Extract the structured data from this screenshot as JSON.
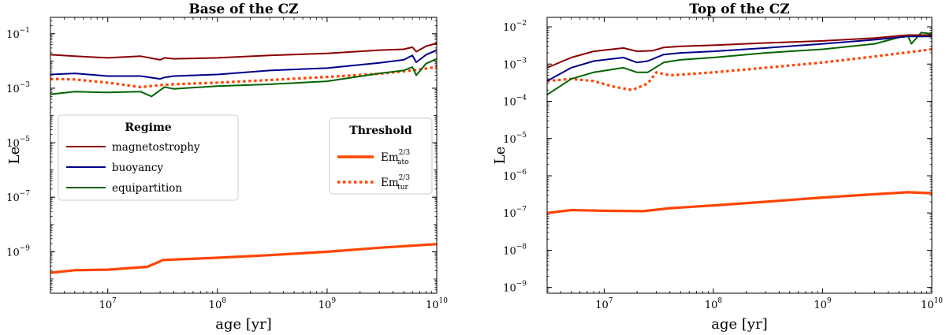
{
  "chart_data": [
    {
      "type": "line",
      "title": "Base of the CZ",
      "xlabel": "age [yr]",
      "ylabel": "Le",
      "xscale": "log",
      "yscale": "log",
      "xlim": [
        3000000,
        10000000000
      ],
      "ylim": [
        3e-11,
        0.4
      ],
      "x_ticks": [
        {
          "base": "10",
          "exp": "7",
          "value": 10000000
        },
        {
          "base": "10",
          "exp": "8",
          "value": 100000000
        },
        {
          "base": "10",
          "exp": "9",
          "value": 1000000000
        },
        {
          "base": "10",
          "exp": "10",
          "value": 10000000000
        }
      ],
      "y_ticks": [
        {
          "base": "10",
          "exp": "−9",
          "value": 1e-09
        },
        {
          "base": "10",
          "exp": "−7",
          "value": 1e-07
        },
        {
          "base": "10",
          "exp": "−5",
          "value": 1e-05
        },
        {
          "base": "10",
          "exp": "−3",
          "value": 0.001
        },
        {
          "base": "10",
          "exp": "−1",
          "value": 0.1
        }
      ],
      "series": [
        {
          "name": "magnetostrophy",
          "color": "#8b0000",
          "style": "solid",
          "x": [
            3000000.0,
            5000000.0,
            10000000.0,
            20000000.0,
            30000000.0,
            33000000.0,
            40000000.0,
            100000000.0,
            300000000.0,
            1000000000.0,
            3000000000.0,
            5000000000.0,
            6000000000.0,
            6500000000.0,
            8000000000.0,
            10000000000.0
          ],
          "y": [
            0.017,
            0.015,
            0.013,
            0.015,
            0.011,
            0.013,
            0.012,
            0.013,
            0.016,
            0.019,
            0.025,
            0.027,
            0.032,
            0.022,
            0.035,
            0.045
          ]
        },
        {
          "name": "buoyancy",
          "color": "#00008b",
          "style": "solid",
          "x": [
            3000000.0,
            5000000.0,
            10000000.0,
            20000000.0,
            30000000.0,
            33000000.0,
            40000000.0,
            100000000.0,
            300000000.0,
            1000000000.0,
            3000000000.0,
            5000000000.0,
            6000000000.0,
            6500000000.0,
            8000000000.0,
            10000000000.0
          ],
          "y": [
            0.0032,
            0.0035,
            0.0028,
            0.0028,
            0.0022,
            0.0025,
            0.0028,
            0.0032,
            0.0045,
            0.0055,
            0.0085,
            0.011,
            0.016,
            0.009,
            0.017,
            0.025
          ]
        },
        {
          "name": "equipartition",
          "color": "#006400",
          "style": "solid",
          "x": [
            3000000.0,
            5000000.0,
            10000000.0,
            20000000.0,
            25000000.0,
            30000000.0,
            33000000.0,
            40000000.0,
            100000000.0,
            300000000.0,
            1000000000.0,
            3000000000.0,
            5000000000.0,
            6000000000.0,
            6500000000.0,
            8000000000.0,
            10000000000.0
          ],
          "y": [
            0.0006,
            0.00075,
            0.0007,
            0.00075,
            0.0005,
            0.00085,
            0.0011,
            0.00095,
            0.0012,
            0.0014,
            0.0018,
            0.0035,
            0.0045,
            0.006,
            0.003,
            0.008,
            0.012
          ]
        },
        {
          "name": "Em_tur^{2/3}",
          "color": "#ff4500",
          "style": "dotted",
          "x": [
            3000000.0,
            5000000.0,
            10000000.0,
            20000000.0,
            30000000.0,
            40000000.0,
            100000000.0,
            300000000.0,
            1000000000.0,
            3000000000.0,
            6000000000.0,
            10000000000.0
          ],
          "y": [
            0.0022,
            0.0021,
            0.0016,
            0.0011,
            0.0013,
            0.0014,
            0.0016,
            0.002,
            0.0026,
            0.0034,
            0.0045,
            0.006
          ]
        },
        {
          "name": "Em_ato^{2/3}",
          "color": "#ff4500",
          "style": "solid-thick",
          "x": [
            3000000.0,
            5000000.0,
            10000000.0,
            23000000.0,
            32000000.0,
            100000000.0,
            300000000.0,
            1000000000.0,
            3000000000.0,
            10000000000.0
          ],
          "y": [
            1.7e-10,
            2.1e-10,
            2.2e-10,
            2.8e-10,
            5e-10,
            6e-10,
            7.5e-10,
            1e-09,
            1.4e-09,
            1.9e-09
          ]
        }
      ],
      "legend_regime": {
        "title": "Regime",
        "entries": [
          "magnetostrophy",
          "buoyancy",
          "equipartition"
        ],
        "position": "center-left"
      },
      "legend_threshold": {
        "title": "Threshold",
        "entries": [
          {
            "base": "Em",
            "sup": "2/3",
            "sub": "ato"
          },
          {
            "base": "Em",
            "sup": "2/3",
            "sub": "tur"
          }
        ],
        "position": "center-right"
      }
    },
    {
      "type": "line",
      "title": "Top of the CZ",
      "xlabel": "age [yr]",
      "ylabel": "Le",
      "xscale": "log",
      "yscale": "log",
      "xlim": [
        3000000,
        10000000000
      ],
      "ylim": [
        7e-10,
        0.018
      ],
      "x_ticks": [
        {
          "base": "10",
          "exp": "7",
          "value": 10000000
        },
        {
          "base": "10",
          "exp": "8",
          "value": 100000000
        },
        {
          "base": "10",
          "exp": "9",
          "value": 1000000000
        },
        {
          "base": "10",
          "exp": "10",
          "value": 10000000000
        }
      ],
      "y_ticks": [
        {
          "base": "10",
          "exp": "−9",
          "value": 1e-09
        },
        {
          "base": "10",
          "exp": "−8",
          "value": 1e-08
        },
        {
          "base": "10",
          "exp": "−7",
          "value": 1e-07
        },
        {
          "base": "10",
          "exp": "−6",
          "value": 1e-06
        },
        {
          "base": "10",
          "exp": "−5",
          "value": 1e-05
        },
        {
          "base": "10",
          "exp": "−4",
          "value": 0.0001
        },
        {
          "base": "10",
          "exp": "−3",
          "value": 0.001
        },
        {
          "base": "10",
          "exp": "−2",
          "value": 0.01
        }
      ],
      "series": [
        {
          "name": "magnetostrophy",
          "color": "#8b0000",
          "style": "solid",
          "x": [
            3000000.0,
            5000000.0,
            8000000.0,
            15000000.0,
            20000000.0,
            28000000.0,
            35000000.0,
            50000000.0,
            100000000.0,
            300000000.0,
            1000000000.0,
            3000000000.0,
            6000000000.0,
            10000000000.0
          ],
          "y": [
            0.0008,
            0.0015,
            0.0022,
            0.0027,
            0.0022,
            0.0023,
            0.0028,
            0.003,
            0.0032,
            0.0037,
            0.0042,
            0.005,
            0.006,
            0.006
          ]
        },
        {
          "name": "buoyancy",
          "color": "#00008b",
          "style": "solid",
          "x": [
            3000000.0,
            5000000.0,
            8000000.0,
            15000000.0,
            20000000.0,
            25000000.0,
            35000000.0,
            50000000.0,
            100000000.0,
            300000000.0,
            1000000000.0,
            3000000000.0,
            6000000000.0,
            10000000000.0
          ],
          "y": [
            0.00035,
            0.0008,
            0.0012,
            0.0015,
            0.0011,
            0.0012,
            0.0018,
            0.002,
            0.0022,
            0.0027,
            0.0035,
            0.0045,
            0.0055,
            0.0055
          ]
        },
        {
          "name": "equipartition",
          "color": "#006400",
          "style": "solid",
          "x": [
            3000000.0,
            5000000.0,
            8000000.0,
            15000000.0,
            20000000.0,
            25000000.0,
            35000000.0,
            50000000.0,
            100000000.0,
            300000000.0,
            1000000000.0,
            3000000000.0,
            6000000000.0,
            6500000000.0,
            8000000000.0,
            10000000000.0
          ],
          "y": [
            0.00015,
            0.0004,
            0.0006,
            0.0008,
            0.0006,
            0.0006,
            0.0011,
            0.0013,
            0.0015,
            0.002,
            0.0025,
            0.0035,
            0.006,
            0.0035,
            0.007,
            0.0065
          ]
        },
        {
          "name": "Em_tur^{2/3}",
          "color": "#ff4500",
          "style": "dotted",
          "x": [
            3000000.0,
            5000000.0,
            8000000.0,
            12000000.0,
            18000000.0,
            25000000.0,
            30000000.0,
            40000000.0,
            100000000.0,
            300000000.0,
            1000000000.0,
            3000000000.0,
            10000000000.0
          ],
          "y": [
            0.00035,
            0.0004,
            0.00035,
            0.00025,
            0.0002,
            0.0003,
            0.0006,
            0.0005,
            0.0006,
            0.0008,
            0.0011,
            0.0016,
            0.0025
          ]
        },
        {
          "name": "Em_ato^{2/3}",
          "color": "#ff4500",
          "style": "solid-thick",
          "x": [
            3000000.0,
            5000000.0,
            10000000.0,
            23000000.0,
            40000000.0,
            100000000.0,
            300000000.0,
            1000000000.0,
            3000000000.0,
            6000000000.0,
            10000000000.0
          ],
          "y": [
            1e-07,
            1.2e-07,
            1.15e-07,
            1.12e-07,
            1.35e-07,
            1.6e-07,
            2e-07,
            2.6e-07,
            3.2e-07,
            3.6e-07,
            3.4e-07
          ]
        }
      ]
    }
  ]
}
